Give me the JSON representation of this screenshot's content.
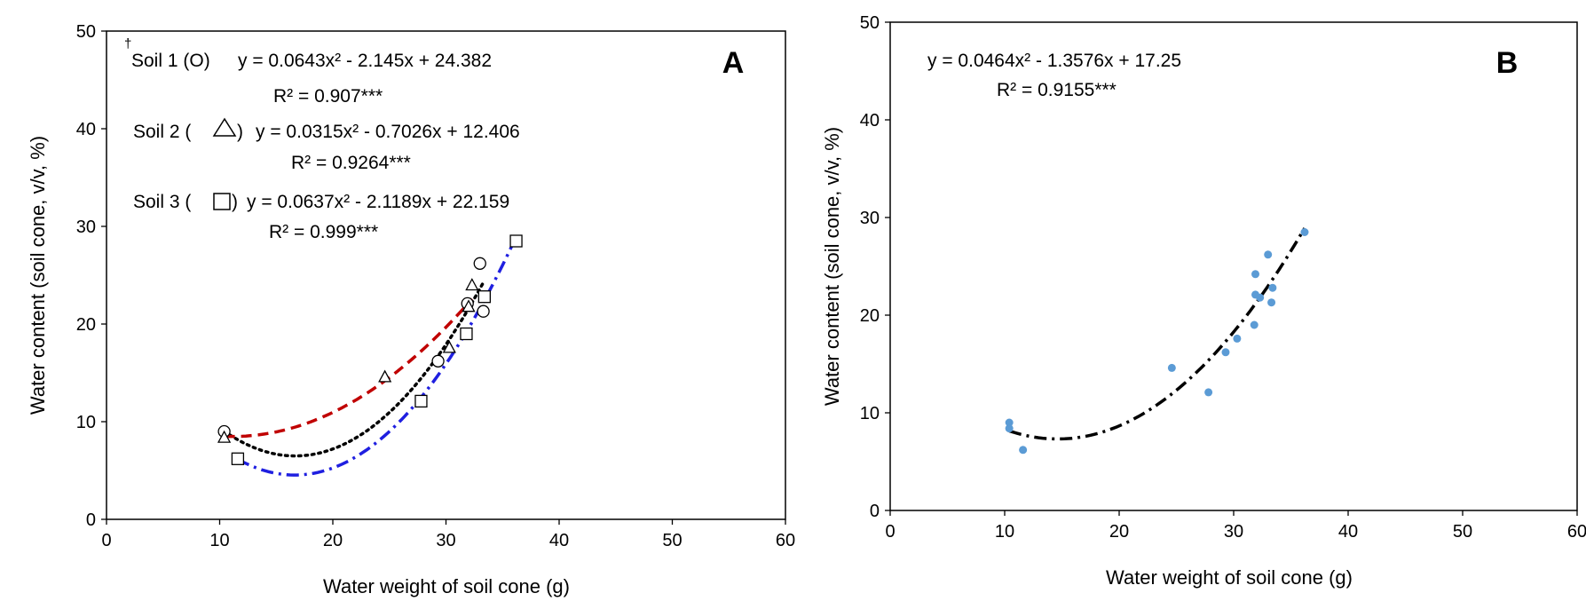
{
  "chart_data": [
    {
      "type": "scatter",
      "panel_label": "A",
      "xlabel": "Water weight of soil cone (g)",
      "ylabel": "Water content (soil cone, v/v, %)",
      "xlim": [
        0,
        60
      ],
      "ylim": [
        0,
        50
      ],
      "xticks": [
        0,
        10,
        20,
        30,
        40,
        50,
        60
      ],
      "yticks": [
        0,
        10,
        20,
        30,
        40,
        50
      ],
      "grid": false,
      "series": [
        {
          "name": "Soil 1 (O)",
          "marker": "circle",
          "color": "#000000",
          "points": [
            [
              10.4,
              9.0
            ],
            [
              29.3,
              16.2
            ],
            [
              31.9,
              22.1
            ],
            [
              33.0,
              26.2
            ],
            [
              33.3,
              21.3
            ]
          ],
          "fit": {
            "a": 0.0643,
            "b": -2.145,
            "c": 24.382,
            "x_range": [
              10.4,
              33.3
            ],
            "line": "dotted",
            "color": "#000000"
          },
          "equation": "y = 0.0643x² - 2.145x + 24.382",
          "r2": "R² = 0.907***"
        },
        {
          "name": "Soil 2 (△)",
          "marker": "triangle",
          "color": "#000000",
          "points": [
            [
              10.4,
              8.4
            ],
            [
              24.6,
              14.6
            ],
            [
              30.3,
              17.6
            ],
            [
              32.0,
              21.8
            ],
            [
              32.3,
              24.0
            ]
          ],
          "fit": {
            "a": 0.0315,
            "b": -0.7026,
            "c": 12.406,
            "x_range": [
              10.4,
              32.3
            ],
            "line": "dashed",
            "color": "#c00000"
          },
          "equation": "y = 0.0315x² - 0.7026x + 12.406",
          "r2": "R² = 0.9264***"
        },
        {
          "name": "Soil 3 (☐)",
          "marker": "square",
          "color": "#000000",
          "points": [
            [
              11.6,
              6.2
            ],
            [
              27.8,
              12.1
            ],
            [
              31.8,
              19.0
            ],
            [
              33.4,
              22.8
            ],
            [
              36.2,
              28.5
            ]
          ],
          "fit": {
            "a": 0.0637,
            "b": -2.1189,
            "c": 22.159,
            "x_range": [
              11.6,
              36.2
            ],
            "line": "dashdot",
            "color": "#1f1fe0"
          },
          "equation": "y = 0.0637x² - 2.1189x + 22.159",
          "r2": "R² = 0.999***"
        }
      ]
    },
    {
      "type": "scatter",
      "panel_label": "B",
      "xlabel": "Water weight of soil cone (g)",
      "ylabel": "Water content (soil cone, v/v, %)",
      "xlim": [
        0,
        60
      ],
      "ylim": [
        0,
        50
      ],
      "xticks": [
        0,
        10,
        20,
        30,
        40,
        50,
        60
      ],
      "yticks": [
        0,
        10,
        20,
        30,
        40,
        50
      ],
      "grid": false,
      "series": [
        {
          "marker": "dot",
          "color": "#5b9bd5",
          "points": [
            [
              10.4,
              9.0
            ],
            [
              10.4,
              8.4
            ],
            [
              11.6,
              6.2
            ],
            [
              24.6,
              14.6
            ],
            [
              27.8,
              12.1
            ],
            [
              29.3,
              16.2
            ],
            [
              30.3,
              17.6
            ],
            [
              31.8,
              19.0
            ],
            [
              31.9,
              24.2
            ],
            [
              31.9,
              22.1
            ],
            [
              32.3,
              21.8
            ],
            [
              33.0,
              26.2
            ],
            [
              33.3,
              21.3
            ],
            [
              33.4,
              22.8
            ],
            [
              36.2,
              28.5
            ]
          ],
          "fit": {
            "a": 0.0464,
            "b": -1.3576,
            "c": 17.25,
            "x_range": [
              10.4,
              36.2
            ],
            "line": "dashdot",
            "color": "#000000"
          },
          "equation": "y = 0.0464x² - 1.3576x + 17.25",
          "r2": "R² = 0.9155***"
        }
      ]
    }
  ],
  "annotations_a": {
    "dagger": "†",
    "soil1_label": "Soil 1 (O)",
    "soil1_eq": "y = 0.0643x² - 2.145x + 24.382",
    "soil1_r2": "R² = 0.907***",
    "soil2_label": "Soil 2 (",
    "soil2_label_end": ")",
    "soil2_eq": "y = 0.0315x² - 0.7026x + 12.406",
    "soil2_r2": "R² = 0.9264***",
    "soil3_label": "Soil 3 (",
    "soil3_label_end": ")",
    "soil3_eq": "y = 0.0637x² - 2.1189x + 22.159",
    "soil3_r2": "R² = 0.999***"
  },
  "annotations_b": {
    "eq": "y = 0.0464x² - 1.3576x + 17.25",
    "r2": "R² = 0.9155***"
  }
}
